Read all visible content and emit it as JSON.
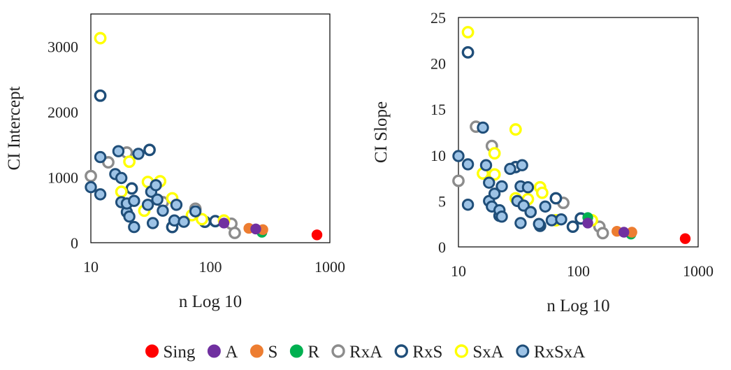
{
  "chart_data": [
    {
      "type": "scatter",
      "title": "",
      "xlabel": "n Log 10",
      "ylabel": "CI Intercept",
      "xscale": "log",
      "xlim": [
        10,
        1000
      ],
      "ylim": [
        0,
        3500
      ],
      "xticks": [
        10,
        100,
        1000
      ],
      "yticks": [
        0,
        1000,
        2000,
        3000
      ],
      "grid": false,
      "series": [
        {
          "name": "Sing",
          "points": [
            [
              780,
              120
            ]
          ]
        },
        {
          "name": "A",
          "points": [
            [
              130,
              300
            ],
            [
              240,
              210
            ]
          ]
        },
        {
          "name": "S",
          "points": [
            [
              210,
              220
            ],
            [
              275,
              200
            ]
          ]
        },
        {
          "name": "R",
          "points": [
            [
              270,
              160
            ]
          ]
        },
        {
          "name": "RxA",
          "points": [
            [
              10,
              1020
            ],
            [
              14,
              1230
            ],
            [
              20,
              1380
            ],
            [
              40,
              620
            ],
            [
              75,
              520
            ],
            [
              150,
              290
            ],
            [
              160,
              150
            ]
          ]
        },
        {
          "name": "RxS",
          "points": [
            [
              12,
              2250
            ],
            [
              31,
              1420
            ],
            [
              22,
              830
            ],
            [
              48,
              240
            ],
            [
              90,
              320
            ],
            [
              110,
              330
            ]
          ]
        },
        {
          "name": "SxA",
          "points": [
            [
              12,
              3130
            ],
            [
              21,
              1240
            ],
            [
              30,
              930
            ],
            [
              38,
              940
            ],
            [
              48,
              680
            ],
            [
              18,
              780
            ],
            [
              28,
              490
            ],
            [
              70,
              420
            ],
            [
              85,
              360
            ],
            [
              130,
              340
            ]
          ]
        },
        {
          "name": "RxSxA",
          "points": [
            [
              10,
              850
            ],
            [
              12,
              740
            ],
            [
              12,
              1310
            ],
            [
              16,
              1050
            ],
            [
              17,
              1400
            ],
            [
              18,
              990
            ],
            [
              18,
              620
            ],
            [
              20,
              470
            ],
            [
              20,
              600
            ],
            [
              21,
              400
            ],
            [
              23,
              240
            ],
            [
              23,
              640
            ],
            [
              25,
              1360
            ],
            [
              30,
              580
            ],
            [
              32,
              780
            ],
            [
              33,
              300
            ],
            [
              35,
              880
            ],
            [
              36,
              660
            ],
            [
              40,
              490
            ],
            [
              50,
              340
            ],
            [
              52,
              580
            ],
            [
              60,
              320
            ],
            [
              75,
              480
            ]
          ]
        }
      ]
    },
    {
      "type": "scatter",
      "title": "",
      "xlabel": "n Log 10",
      "ylabel": "CI Slope",
      "xscale": "log",
      "xlim": [
        10,
        1000
      ],
      "ylim": [
        0,
        25
      ],
      "xticks": [
        10,
        100,
        1000
      ],
      "yticks": [
        0,
        5,
        10,
        15,
        20,
        25
      ],
      "grid": false,
      "series": [
        {
          "name": "Sing",
          "points": [
            [
              780,
              0.9
            ]
          ]
        },
        {
          "name": "A",
          "points": [
            [
              120,
              2.6
            ],
            [
              240,
              1.6
            ]
          ]
        },
        {
          "name": "S",
          "points": [
            [
              210,
              1.7
            ],
            [
              280,
              1.6
            ]
          ]
        },
        {
          "name": "R",
          "points": [
            [
              120,
              3.2
            ],
            [
              275,
              1.4
            ]
          ]
        },
        {
          "name": "RxA",
          "points": [
            [
              10,
              7.2
            ],
            [
              14,
              13.1
            ],
            [
              19,
              11.0
            ],
            [
              40,
              3.8
            ],
            [
              75,
              4.8
            ],
            [
              150,
              2.2
            ],
            [
              160,
              1.5
            ]
          ]
        },
        {
          "name": "RxS",
          "points": [
            [
              12,
              21.2
            ],
            [
              30,
              8.7
            ],
            [
              22,
              3.4
            ],
            [
              48,
              2.3
            ],
            [
              65,
              5.3
            ],
            [
              90,
              2.2
            ],
            [
              105,
              3.1
            ]
          ]
        },
        {
          "name": "SxA",
          "points": [
            [
              12,
              23.4
            ],
            [
              30,
              12.8
            ],
            [
              20,
              10.2
            ],
            [
              16,
              8.0
            ],
            [
              48,
              6.5
            ],
            [
              30,
              5.3
            ],
            [
              50,
              5.9
            ],
            [
              20,
              7.9
            ],
            [
              130,
              2.9
            ],
            [
              38,
              5.2
            ],
            [
              65,
              2.9
            ]
          ]
        },
        {
          "name": "RxSxA",
          "points": [
            [
              10,
              9.9
            ],
            [
              12,
              9.0
            ],
            [
              12,
              4.6
            ],
            [
              16,
              13.0
            ],
            [
              17,
              8.9
            ],
            [
              18,
              7.0
            ],
            [
              18,
              5.0
            ],
            [
              19,
              4.4
            ],
            [
              20,
              5.8
            ],
            [
              22,
              4.0
            ],
            [
              23,
              3.3
            ],
            [
              23,
              6.6
            ],
            [
              27,
              8.5
            ],
            [
              31,
              5.0
            ],
            [
              33,
              6.6
            ],
            [
              33,
              2.6
            ],
            [
              34,
              8.9
            ],
            [
              35,
              4.5
            ],
            [
              38,
              6.5
            ],
            [
              40,
              3.8
            ],
            [
              47,
              2.5
            ],
            [
              53,
              4.4
            ],
            [
              60,
              2.9
            ],
            [
              72,
              3.0
            ]
          ]
        }
      ]
    }
  ],
  "legend": {
    "position": "bottom",
    "items": [
      {
        "name": "Sing",
        "style": "filled",
        "fill": "#ff0000",
        "stroke": "#ff0000"
      },
      {
        "name": "A",
        "style": "filled",
        "fill": "#7030a0",
        "stroke": "#7030a0"
      },
      {
        "name": "S",
        "style": "filled",
        "fill": "#ed7d31",
        "stroke": "#ed7d31"
      },
      {
        "name": "R",
        "style": "filled",
        "fill": "#00b050",
        "stroke": "#00b050"
      },
      {
        "name": "RxA",
        "style": "ring",
        "fill": "#ffffff",
        "stroke": "#8c8c8c"
      },
      {
        "name": "RxS",
        "style": "ring",
        "fill": "#ffffff",
        "stroke": "#1f4e79"
      },
      {
        "name": "SxA",
        "style": "ring",
        "fill": "#ffffff",
        "stroke": "#ffff00"
      },
      {
        "name": "RxSxA",
        "style": "filled-ring",
        "fill": "#9dc3e6",
        "stroke": "#1f4e79"
      }
    ]
  }
}
